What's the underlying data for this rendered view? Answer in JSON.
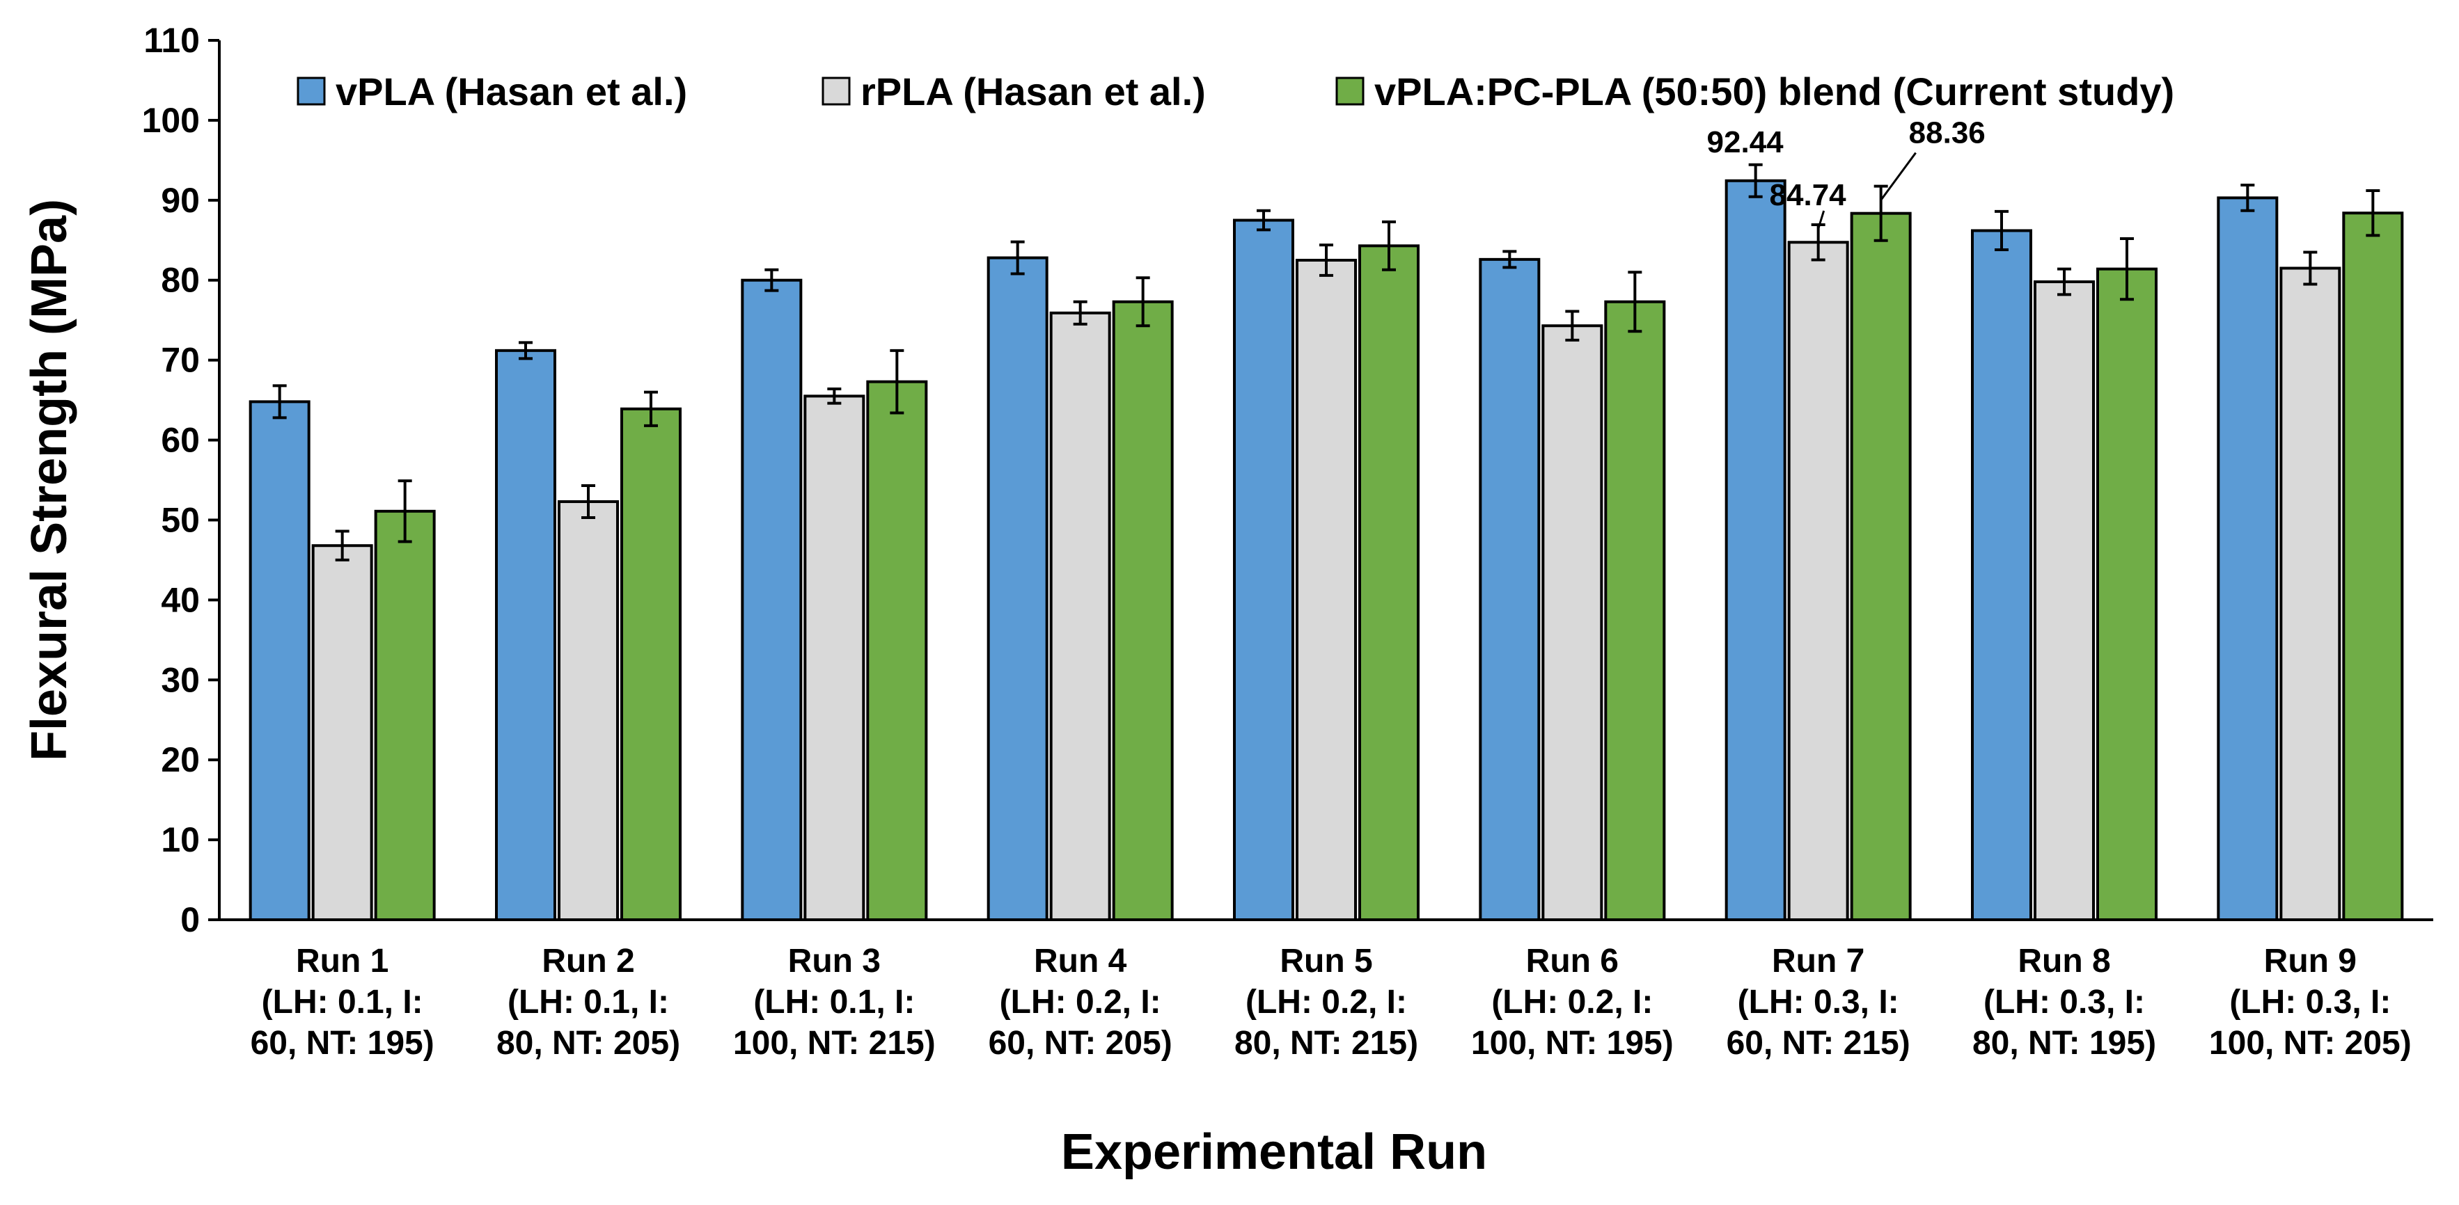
{
  "chart_data": {
    "type": "bar",
    "xlabel": "Experimental Run",
    "ylabel": "Flexural Strength (MPa)",
    "ylim": [
      0,
      110
    ],
    "yticks": [
      0,
      10,
      20,
      30,
      40,
      50,
      60,
      70,
      80,
      90,
      100,
      110
    ],
    "grid": false,
    "legend_position": "top",
    "categories": [
      [
        "Run 1",
        "(LH: 0.1, I:",
        "60, NT: 195)"
      ],
      [
        "Run 2",
        "(LH: 0.1, I:",
        "80, NT: 205)"
      ],
      [
        "Run 3",
        "(LH: 0.1, I:",
        "100, NT: 215)"
      ],
      [
        "Run 4",
        "(LH: 0.2, I:",
        "60, NT: 205)"
      ],
      [
        "Run 5",
        "(LH: 0.2, I:",
        "80, NT: 215)"
      ],
      [
        "Run 6",
        "(LH: 0.2, I:",
        "100, NT: 195)"
      ],
      [
        "Run 7",
        "(LH: 0.3, I:",
        "60, NT: 215)"
      ],
      [
        "Run 8",
        "(LH: 0.3, I:",
        "80, NT: 195)"
      ],
      [
        "Run 9",
        "(LH: 0.3, I:",
        "100, NT: 205)"
      ]
    ],
    "series": [
      {
        "name": "vPLA (Hasan et al.)",
        "color": "#5b9bd5",
        "values": [
          64.8,
          71.2,
          80.0,
          82.8,
          87.5,
          82.6,
          92.44,
          86.2,
          90.3
        ],
        "errors": [
          2.0,
          1.0,
          1.3,
          2.0,
          1.2,
          1.0,
          2.0,
          2.4,
          1.6
        ]
      },
      {
        "name": "rPLA (Hasan et al.)",
        "color": "#d9d9d9",
        "values": [
          46.8,
          52.3,
          65.5,
          75.9,
          82.5,
          74.3,
          84.74,
          79.8,
          81.5
        ],
        "errors": [
          1.8,
          2.0,
          0.9,
          1.4,
          1.9,
          1.8,
          2.2,
          1.6,
          2.0
        ]
      },
      {
        "name": "vPLA:PC-PLA (50:50) blend (Current study)",
        "color": "#70ad47",
        "values": [
          51.1,
          63.9,
          67.3,
          77.3,
          84.3,
          77.3,
          88.36,
          81.4,
          88.4
        ],
        "errors": [
          3.8,
          2.1,
          3.9,
          3.0,
          3.0,
          3.7,
          3.4,
          3.8,
          2.8
        ]
      }
    ],
    "annotations": [
      {
        "text": "92.44",
        "category": 6,
        "series": 0
      },
      {
        "text": "84.74",
        "category": 6,
        "series": 1
      },
      {
        "text": "88.36",
        "category": 6,
        "series": 2
      }
    ]
  }
}
